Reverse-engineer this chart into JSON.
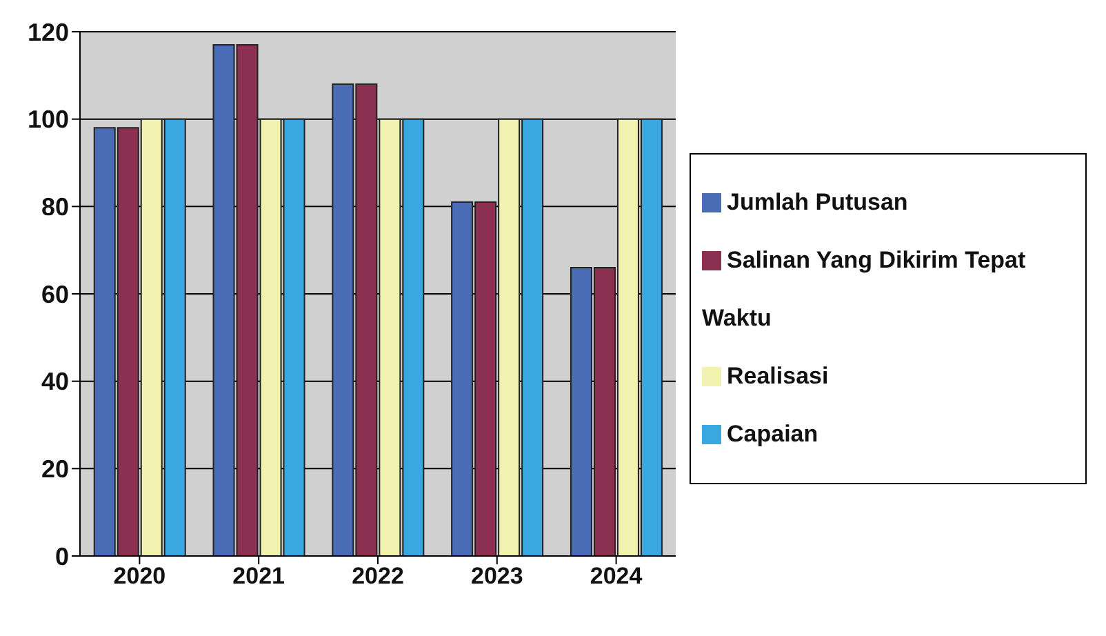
{
  "chart_data": {
    "type": "bar",
    "categories": [
      "2020",
      "2021",
      "2022",
      "2023",
      "2024"
    ],
    "series": [
      {
        "name": "Jumlah Putusan",
        "color": "#4a6bb5",
        "values": [
          98,
          117,
          108,
          81,
          66
        ]
      },
      {
        "name": "Salinan Yang Dikirim Tepat Waktu",
        "color": "#8b3050",
        "values": [
          98,
          117,
          108,
          81,
          66
        ]
      },
      {
        "name": "Realisasi",
        "color": "#f2f2b0",
        "values": [
          100,
          100,
          100,
          100,
          100
        ]
      },
      {
        "name": "Capaian",
        "color": "#3aa8e0",
        "values": [
          100,
          100,
          100,
          100,
          100
        ]
      }
    ],
    "ylim": [
      0,
      120
    ],
    "yticks": [
      0,
      20,
      40,
      60,
      80,
      100,
      120
    ],
    "grid": "y",
    "legend": "right"
  }
}
